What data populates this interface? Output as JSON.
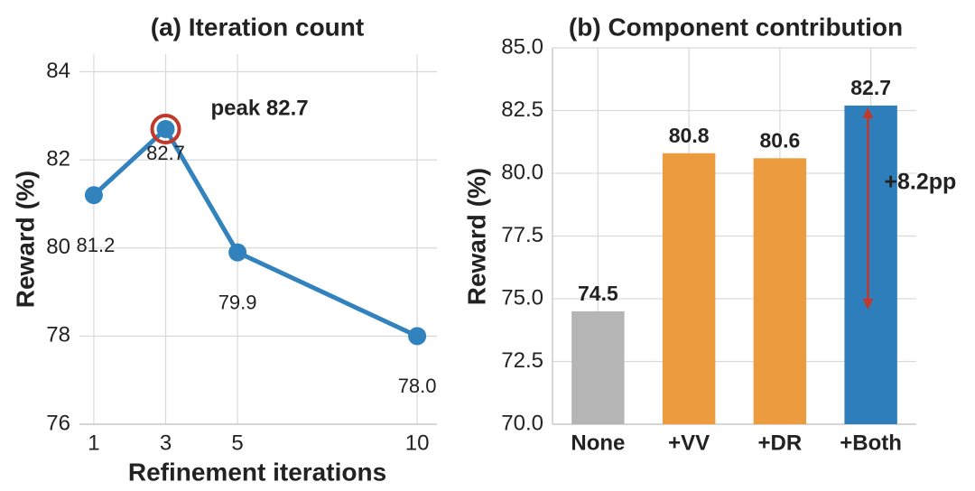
{
  "chart_data": [
    {
      "type": "line",
      "title": "(a) Iteration count",
      "x_label": "Refinement iterations",
      "y_label": "Reward (%)",
      "x": [
        1,
        3,
        5,
        10
      ],
      "values": [
        81.2,
        82.7,
        79.9,
        78.0
      ],
      "value_labels": [
        "81.2",
        "82.7",
        "79.9",
        "78.0"
      ],
      "color": "#3182bd",
      "xlim": [
        0.6,
        10.55
      ],
      "xticks": [
        1,
        3,
        5,
        10
      ],
      "ylim": [
        76,
        84.4
      ],
      "yticks": [
        76,
        78,
        80,
        82,
        84
      ],
      "grid": true,
      "annotation": "peak 82.7",
      "annotation_color": "#c0392b"
    },
    {
      "type": "bar",
      "title": "(b) Component contribution",
      "y_label": "Reward (%)",
      "categories": [
        "None",
        "+VV",
        "+DR",
        "+Both"
      ],
      "values": [
        74.5,
        80.8,
        80.6,
        82.7
      ],
      "colors": [
        "#b5b5b5",
        "#ec9b3e",
        "#ec9b3e",
        "#2f7ebc"
      ],
      "ylim": [
        70,
        85
      ],
      "yticks": [
        {
          "value": 70,
          "label": "70.0"
        },
        {
          "value": 72.5,
          "label": "72.5"
        },
        {
          "value": 75,
          "label": "75.0"
        },
        {
          "value": 77.5,
          "label": "77.5"
        },
        {
          "value": 80,
          "label": "80.0"
        },
        {
          "value": 82.5,
          "label": "82.5"
        },
        {
          "value": 85,
          "label": "85.0"
        }
      ],
      "grid": true,
      "annotation": "+8.2pp",
      "annotation_color": "#c0392b"
    }
  ]
}
